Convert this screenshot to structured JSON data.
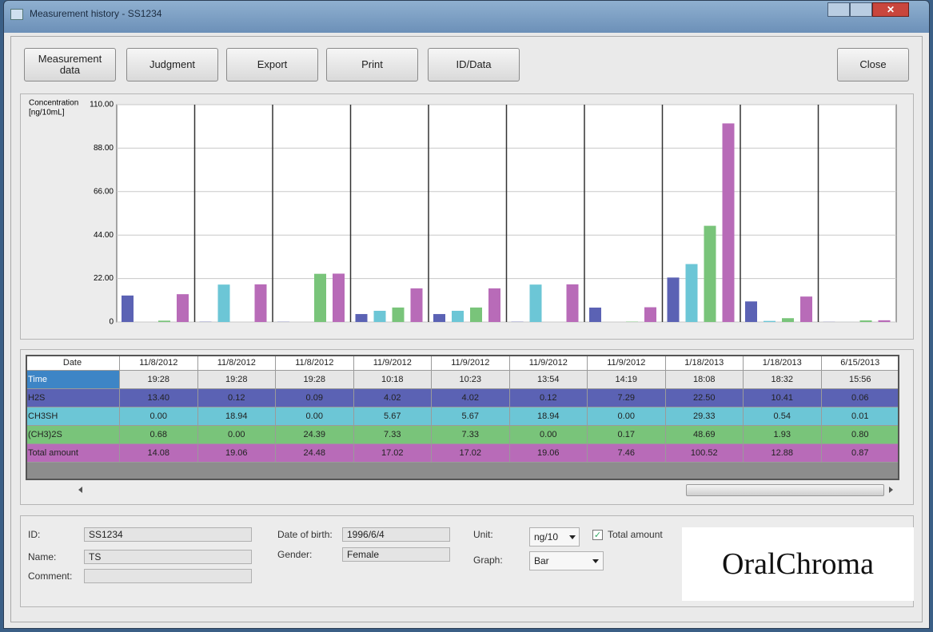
{
  "window": {
    "title": "Measurement history - SS1234"
  },
  "toolbar": {
    "buttons": [
      "Measurement\ndata",
      "Judgment",
      "Export",
      "Print",
      "ID/Data"
    ],
    "close": "Close"
  },
  "chart_data": {
    "type": "bar",
    "ylabel": [
      "Concentration",
      "[ng/10mL]"
    ],
    "categories": [
      "11/8/2012",
      "11/8/2012",
      "11/8/2012",
      "11/9/2012",
      "11/9/2012",
      "11/9/2012",
      "11/9/2012",
      "1/18/2013",
      "1/18/2013",
      "6/15/2013"
    ],
    "series": [
      {
        "name": "H2S",
        "color": "#5b62b4",
        "values": [
          13.4,
          0.12,
          0.09,
          4.02,
          4.02,
          0.12,
          7.29,
          22.5,
          10.41,
          0.06
        ],
        "value_labels": [
          "13.40",
          "0.12",
          "0.09",
          "4.02",
          "4.02",
          "0.12",
          "7.29",
          "22.50",
          "10.41",
          "0.06"
        ]
      },
      {
        "name": "CH3SH",
        "color": "#6cc6d6",
        "values": [
          0.0,
          18.94,
          0.0,
          5.67,
          5.67,
          18.94,
          0.0,
          29.33,
          0.54,
          0.01
        ],
        "value_labels": [
          "0.00",
          "18.94",
          "0.00",
          "5.67",
          "5.67",
          "18.94",
          "0.00",
          "29.33",
          "0.54",
          "0.01"
        ]
      },
      {
        "name": "(CH3)2S",
        "color": "#79c47a",
        "values": [
          0.68,
          0.0,
          24.39,
          7.33,
          7.33,
          0.0,
          0.17,
          48.69,
          1.93,
          0.8
        ],
        "value_labels": [
          "0.68",
          "0.00",
          "24.39",
          "7.33",
          "7.33",
          "0.00",
          "0.17",
          "48.69",
          "1.93",
          "0.80"
        ]
      },
      {
        "name": "Total amount",
        "color": "#b86bb8",
        "values": [
          14.08,
          19.06,
          24.48,
          17.02,
          17.02,
          19.06,
          7.46,
          100.52,
          12.88,
          0.87
        ],
        "value_labels": [
          "14.08",
          "19.06",
          "24.48",
          "17.02",
          "17.02",
          "19.06",
          "7.46",
          "100.52",
          "12.88",
          "0.87"
        ]
      }
    ],
    "ylim": [
      0,
      110
    ],
    "yticks": [
      0,
      {
        "value": 22,
        "label": "22.00"
      },
      {
        "value": 44,
        "label": "44.00"
      },
      {
        "value": 66,
        "label": "66.00"
      },
      {
        "value": 88,
        "label": "88.00"
      },
      {
        "value": 110,
        "label": "110.00"
      }
    ],
    "grid": true
  },
  "table": {
    "header": "Date",
    "time_label": "Time",
    "times": [
      "19:28",
      "19:28",
      "19:28",
      "10:18",
      "10:23",
      "13:54",
      "14:19",
      "18:08",
      "18:32",
      "15:56"
    ]
  },
  "form": {
    "fields": [
      {
        "label": "ID:",
        "value": "SS1234"
      },
      {
        "label": "Name:",
        "value": "TS"
      },
      {
        "label": "Comment:"
      },
      {
        "label": "Date of birth:",
        "value": "1996/6/4"
      },
      {
        "label": "Gender:",
        "value": "Female"
      }
    ],
    "unit": {
      "label": "Unit:",
      "value": "ng/10"
    },
    "total_checkbox": {
      "label": "Total amount",
      "checked": true
    },
    "graph": {
      "label": "Graph:",
      "value": "Bar"
    }
  },
  "logo": "OralChroma"
}
